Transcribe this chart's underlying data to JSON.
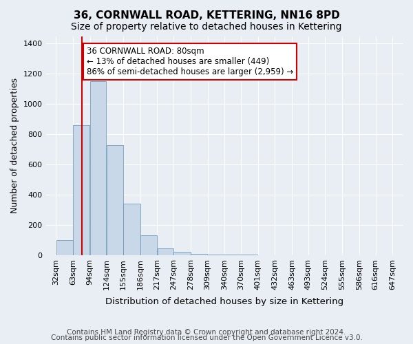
{
  "title": "36, CORNWALL ROAD, KETTERING, NN16 8PD",
  "subtitle": "Size of property relative to detached houses in Kettering",
  "xlabel": "Distribution of detached houses by size in Kettering",
  "ylabel": "Number of detached properties",
  "footnote1": "Contains HM Land Registry data © Crown copyright and database right 2024.",
  "footnote2": "Contains public sector information licensed under the Open Government Licence v3.0.",
  "bin_labels": [
    "32sqm",
    "63sqm",
    "94sqm",
    "124sqm",
    "155sqm",
    "186sqm",
    "217sqm",
    "247sqm",
    "278sqm",
    "309sqm",
    "340sqm",
    "370sqm",
    "401sqm",
    "432sqm",
    "463sqm",
    "493sqm",
    "524sqm",
    "555sqm",
    "586sqm",
    "616sqm",
    "647sqm"
  ],
  "bin_edges": [
    32,
    63,
    94,
    124,
    155,
    186,
    217,
    247,
    278,
    309,
    340,
    370,
    401,
    432,
    463,
    493,
    524,
    555,
    586,
    616,
    647
  ],
  "bar_heights": [
    100,
    860,
    1150,
    730,
    340,
    130,
    45,
    22,
    10,
    5,
    3,
    2,
    1,
    0,
    0,
    0,
    0,
    0,
    0,
    0
  ],
  "bar_color": "#c8d8e8",
  "bar_edge_color": "#6090b0",
  "background_color": "#e8eef4",
  "grid_color": "#ffffff",
  "property_size": 80,
  "property_label": "36 CORNWALL ROAD: 80sqm",
  "annotation_line1": "← 13% of detached houses are smaller (449)",
  "annotation_line2": "86% of semi-detached houses are larger (2,959) →",
  "red_line_color": "#cc0000",
  "annotation_box_color": "#ffffff",
  "annotation_box_edge": "#cc0000",
  "ylim": [
    0,
    1450
  ],
  "yticks": [
    0,
    200,
    400,
    600,
    800,
    1000,
    1200,
    1400
  ],
  "title_fontsize": 11,
  "subtitle_fontsize": 10,
  "axis_label_fontsize": 9,
  "tick_fontsize": 8,
  "annotation_fontsize": 8.5,
  "footnote_fontsize": 7.5
}
